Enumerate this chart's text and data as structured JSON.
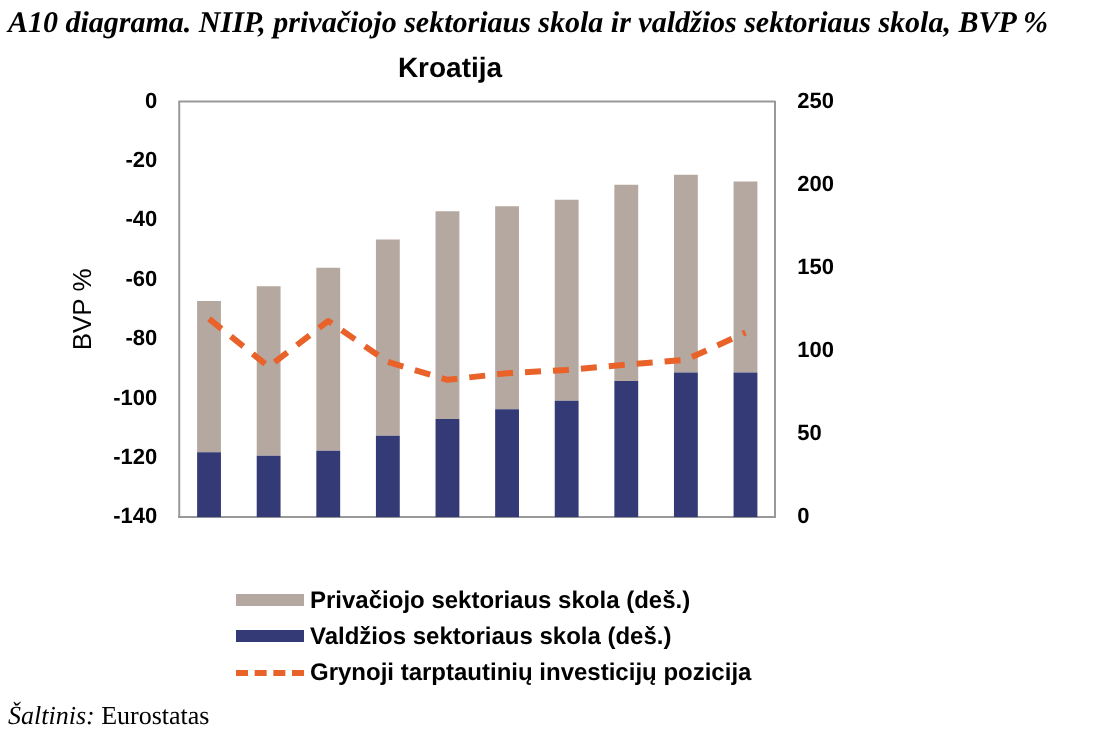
{
  "chart_data": {
    "type": "bar",
    "title": "Kroatija",
    "subtitle": "A10 diagrama. NIIP, privačiojo sektoriaus skola ir valdžios sektoriaus skola, BVP %",
    "ylabel": "BVP %",
    "annotations": [
      "Šaltinis: Eurostatas"
    ],
    "categories": [
      null,
      null,
      null,
      null,
      null,
      null,
      null,
      null,
      null,
      null
    ],
    "stacked": true,
    "grid": false,
    "legend": "bottom left",
    "ylim": [
      -140,
      0
    ],
    "yticks": [
      -140,
      -120,
      -100,
      -80,
      -60,
      -40,
      -20,
      0
    ],
    "y2lim": [
      0,
      250
    ],
    "y2ticks": [
      0,
      50,
      100,
      150,
      200,
      250
    ],
    "series": [
      {
        "name": "Valdžios sektoriaus skola (deš.)",
        "color": "#333a75",
        "axis": "y2",
        "values": [
          39,
          37,
          40,
          49,
          59,
          65,
          70,
          82,
          87,
          87
        ]
      },
      {
        "name": "Privačiojo sektoriaus skola (deš.)",
        "color": "#b5a8a0",
        "axis": "y2",
        "values": [
          91,
          102,
          110,
          118,
          125,
          122,
          121,
          118,
          119,
          115
        ]
      },
      {
        "name": "Grynoji tarptautinių investicijų pozicija",
        "color": "#e8622a",
        "type": "line",
        "marker": "none",
        "line_style": "dashed",
        "values": [
          -73.2,
          -89.3,
          -73.9,
          -87.7,
          -93.7,
          -91.5,
          -90.4,
          -88.6,
          -87,
          -77.8
        ]
      }
    ]
  }
}
